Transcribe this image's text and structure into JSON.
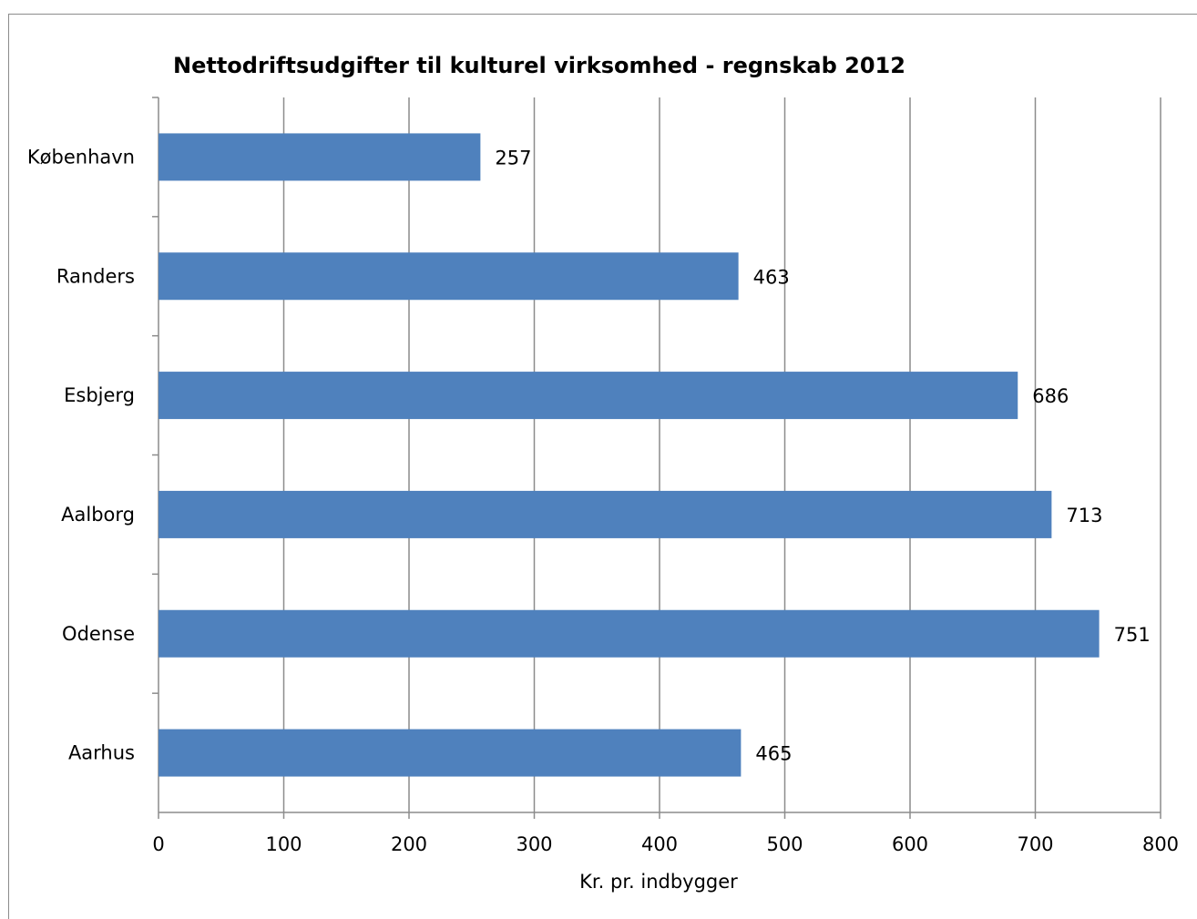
{
  "chart_data": {
    "type": "bar",
    "orientation": "horizontal",
    "title": "Nettodriftsudgifter til kulturel virksomhed - regnskab 2012",
    "xlabel": "Kr. pr. indbygger",
    "ylabel": "",
    "categories": [
      "København",
      "Randers",
      "Esbjerg",
      "Aalborg",
      "Odense",
      "Aarhus"
    ],
    "values": [
      257,
      463,
      686,
      713,
      751,
      465
    ],
    "xlim": [
      0,
      800
    ],
    "ticks": [
      0,
      100,
      200,
      300,
      400,
      500,
      600,
      700,
      800
    ],
    "grid": true,
    "legend": false,
    "bar_color": "#4f81bd"
  }
}
